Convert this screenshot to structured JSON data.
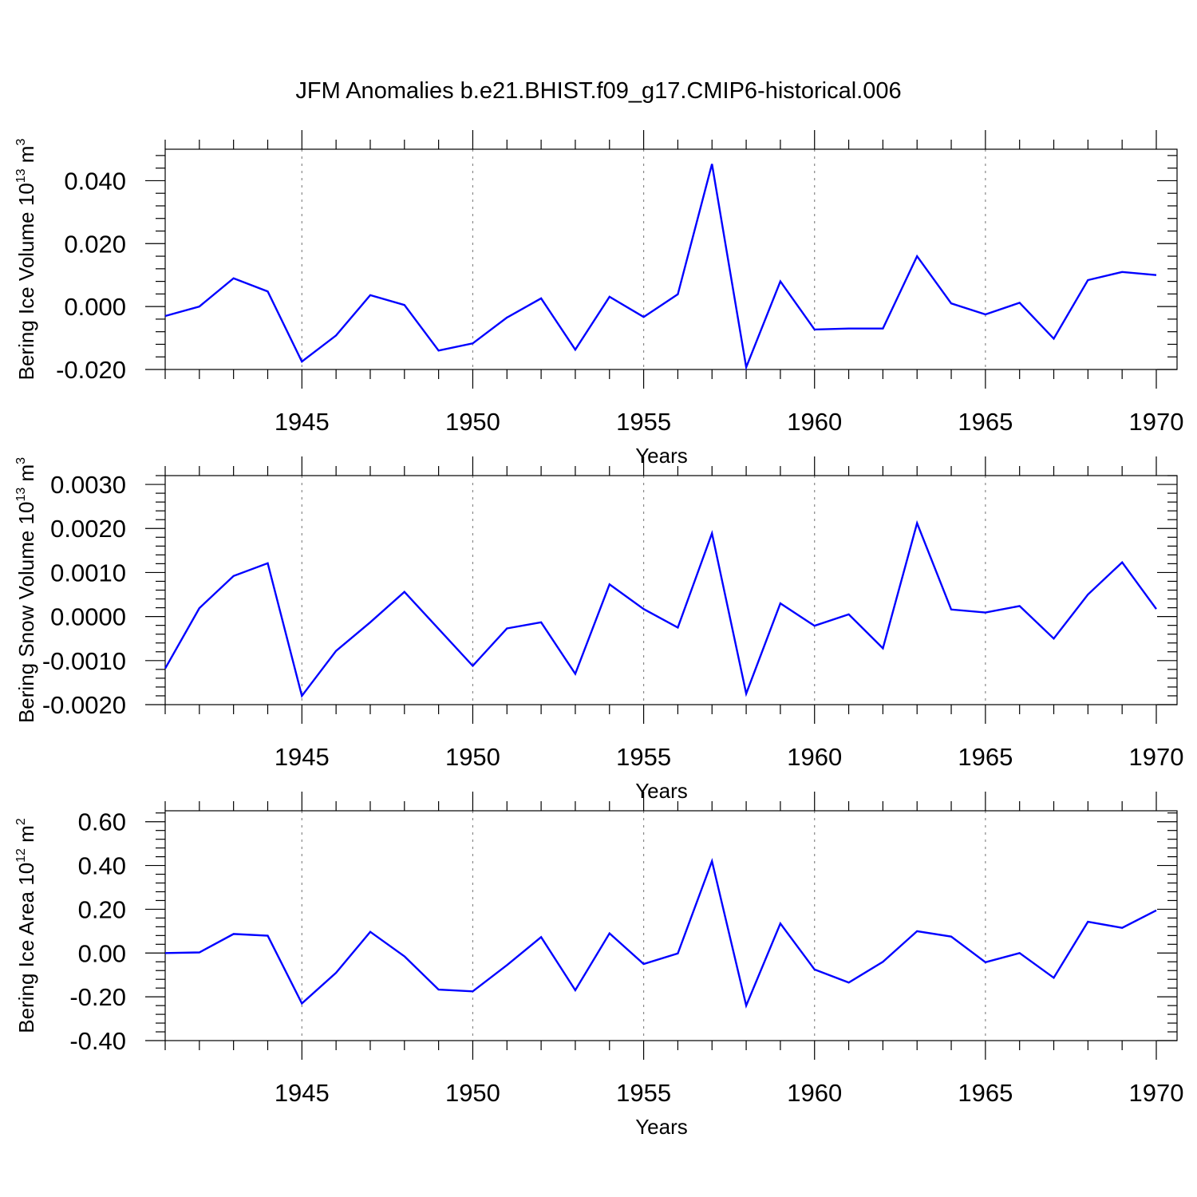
{
  "figure": {
    "title": "JFM Anomalies b.e21.BHIST.f09_g17.CMIP6-historical.006"
  },
  "chart_data": [
    {
      "type": "line",
      "ylabel": "Bering Ice Volume 10",
      "ylabel_exp": "13",
      "ylabel_unit": " m",
      "ylabel_unit_exp": "3",
      "xlabel": "Years",
      "xlim": [
        1941,
        1970
      ],
      "ylim": [
        -0.02,
        0.05
      ],
      "yticks": [
        -0.02,
        0.0,
        0.02,
        0.04
      ],
      "ytick_labels": [
        "-0.020",
        "0.000",
        "0.020",
        "0.040"
      ],
      "xticks": [
        1945,
        1950,
        1955,
        1960,
        1965,
        1970
      ],
      "xtick_labels": [
        "1945",
        "1950",
        "1955",
        "1960",
        "1965",
        "1970"
      ],
      "grid": "vertical dotted lines at major x ticks",
      "color": "#0000ff",
      "x": [
        1941,
        1942,
        1943,
        1944,
        1945,
        1946,
        1947,
        1948,
        1949,
        1950,
        1951,
        1952,
        1953,
        1954,
        1955,
        1956,
        1957,
        1958,
        1959,
        1960,
        1961,
        1962,
        1963,
        1964,
        1965,
        1966,
        1967,
        1968,
        1969,
        1970
      ],
      "values": [
        -0.003,
        0.0,
        0.009,
        0.0048,
        -0.0175,
        -0.0092,
        0.0036,
        0.0005,
        -0.014,
        -0.0117,
        -0.0035,
        0.0026,
        -0.0137,
        0.0031,
        -0.0033,
        0.0039,
        0.0453,
        -0.0193,
        0.008,
        -0.0073,
        -0.007,
        -0.007,
        0.016,
        0.001,
        -0.0025,
        0.0012,
        -0.0102,
        0.0084,
        0.011,
        0.01
      ]
    },
    {
      "type": "line",
      "ylabel": "Bering Snow Volume 10",
      "ylabel_exp": "13",
      "ylabel_unit": " m",
      "ylabel_unit_exp": "3",
      "xlabel": "Years",
      "xlim": [
        1941,
        1970
      ],
      "ylim": [
        -0.002,
        0.0032
      ],
      "yticks": [
        -0.002,
        -0.001,
        0.0,
        0.001,
        0.002,
        0.003
      ],
      "ytick_labels": [
        "-0.0020",
        "-0.0010",
        "0.0000",
        "0.0010",
        "0.0020",
        "0.0030"
      ],
      "xticks": [
        1945,
        1950,
        1955,
        1960,
        1965,
        1970
      ],
      "xtick_labels": [
        "1945",
        "1950",
        "1955",
        "1960",
        "1965",
        "1970"
      ],
      "grid": "vertical dotted lines at major x ticks",
      "color": "#0000ff",
      "x": [
        1941,
        1942,
        1943,
        1944,
        1945,
        1946,
        1947,
        1948,
        1949,
        1950,
        1951,
        1952,
        1953,
        1954,
        1955,
        1956,
        1957,
        1958,
        1959,
        1960,
        1961,
        1962,
        1963,
        1964,
        1965,
        1966,
        1967,
        1968,
        1969,
        1970
      ],
      "values": [
        -0.00118,
        0.00019,
        0.00092,
        0.00121,
        -0.0018,
        -0.00078,
        -0.00013,
        0.00056,
        -0.00028,
        -0.00112,
        -0.00027,
        -0.00013,
        -0.0013,
        0.00073,
        0.00017,
        -0.00025,
        0.00189,
        -0.00175,
        0.0003,
        -0.00021,
        5e-05,
        -0.00072,
        0.00212,
        0.00016,
        9e-05,
        0.00024,
        -0.0005,
        0.0005,
        0.00123,
        0.00017
      ]
    },
    {
      "type": "line",
      "ylabel": "Bering Ice Area 10",
      "ylabel_exp": "12",
      "ylabel_unit": " m",
      "ylabel_unit_exp": "2",
      "xlabel": "Years",
      "xlim": [
        1941,
        1970
      ],
      "ylim": [
        -0.4,
        0.65
      ],
      "yticks": [
        -0.4,
        -0.2,
        0.0,
        0.2,
        0.4,
        0.6
      ],
      "ytick_labels": [
        "-0.40",
        "-0.20",
        "0.00",
        "0.20",
        "0.40",
        "0.60"
      ],
      "xticks": [
        1945,
        1950,
        1955,
        1960,
        1965,
        1970
      ],
      "xtick_labels": [
        "1945",
        "1950",
        "1955",
        "1960",
        "1965",
        "1970"
      ],
      "grid": "vertical dotted lines at major x ticks",
      "color": "#0000ff",
      "x": [
        1941,
        1942,
        1943,
        1944,
        1945,
        1946,
        1947,
        1948,
        1949,
        1950,
        1951,
        1952,
        1953,
        1954,
        1955,
        1956,
        1957,
        1958,
        1959,
        1960,
        1961,
        1962,
        1963,
        1964,
        1965,
        1966,
        1967,
        1968,
        1969,
        1970
      ],
      "values": [
        0.0,
        0.003,
        0.087,
        0.079,
        -0.23,
        -0.09,
        0.097,
        -0.015,
        -0.167,
        -0.175,
        -0.055,
        0.073,
        -0.17,
        0.09,
        -0.05,
        -0.002,
        0.42,
        -0.24,
        0.135,
        -0.075,
        -0.135,
        -0.04,
        0.1,
        0.075,
        -0.042,
        0.0,
        -0.113,
        0.143,
        0.115,
        0.195
      ]
    }
  ]
}
